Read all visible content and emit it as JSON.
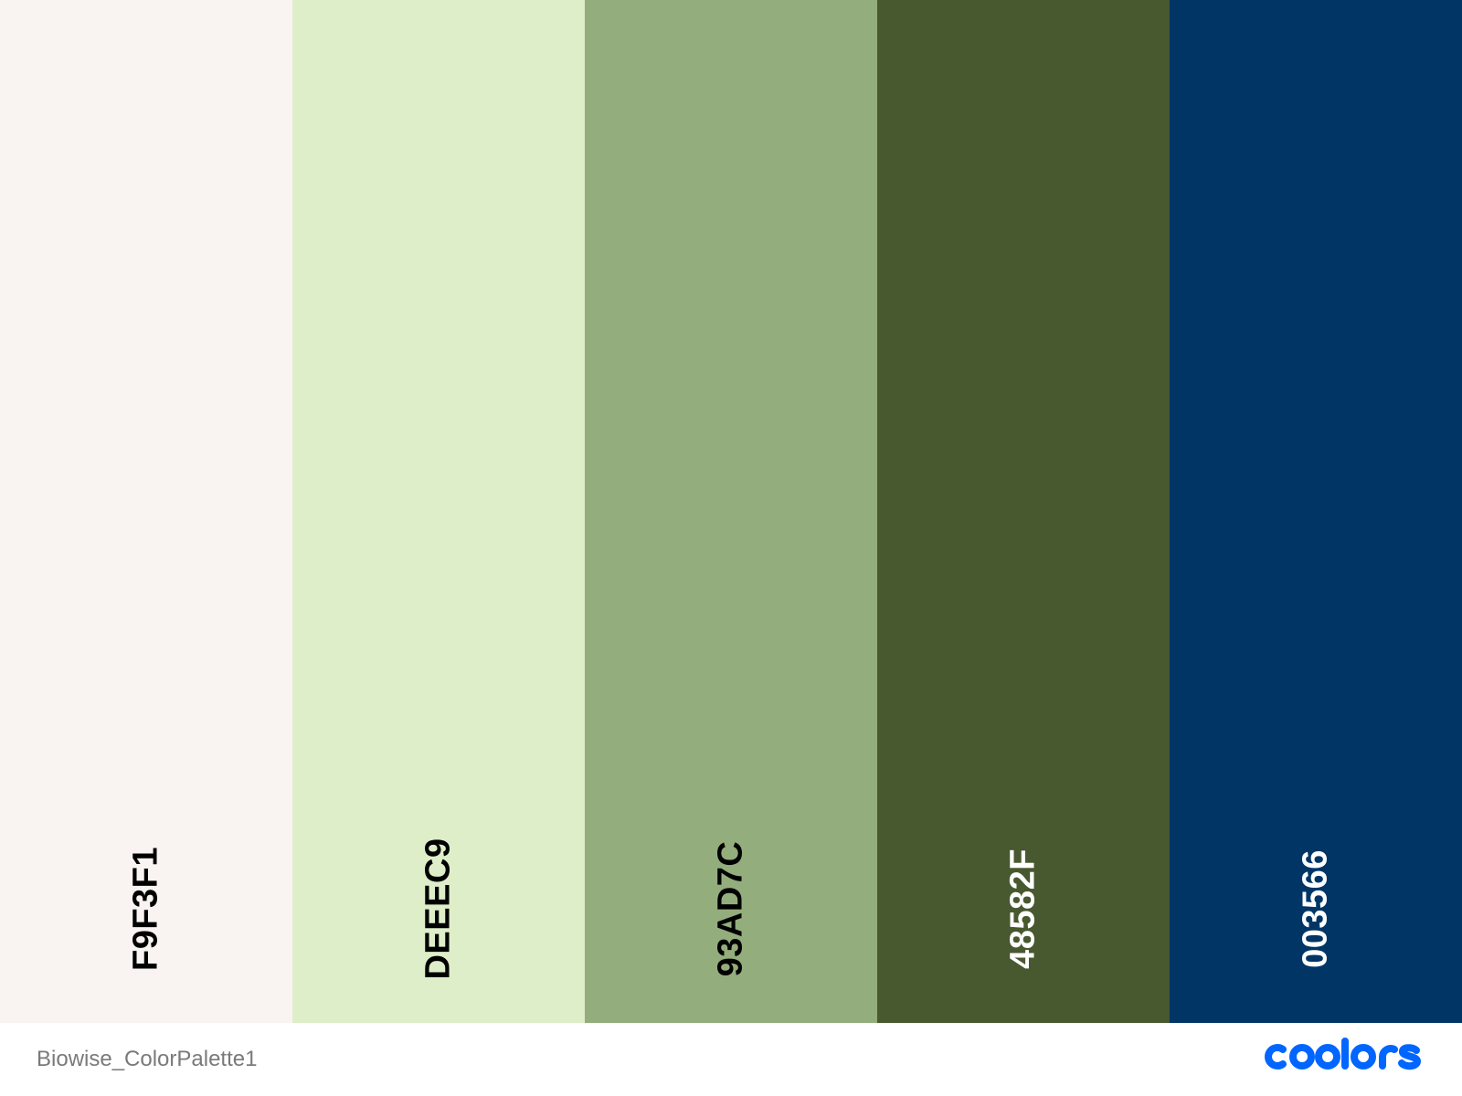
{
  "palette": {
    "swatches": [
      {
        "hex": "F9F3F1",
        "color": "#F9F3F1",
        "text_color": "#000000"
      },
      {
        "hex": "DEEEC9",
        "color": "#DEEEC9",
        "text_color": "#000000"
      },
      {
        "hex": "93AD7C",
        "color": "#93AD7C",
        "text_color": "#000000"
      },
      {
        "hex": "48582F",
        "color": "#48582F",
        "text_color": "#ffffff"
      },
      {
        "hex": "003566",
        "color": "#003566",
        "text_color": "#ffffff"
      }
    ]
  },
  "footer": {
    "palette_name": "Biowise_ColorPalette1",
    "brand": "coolors",
    "brand_color": "#0066FF"
  }
}
